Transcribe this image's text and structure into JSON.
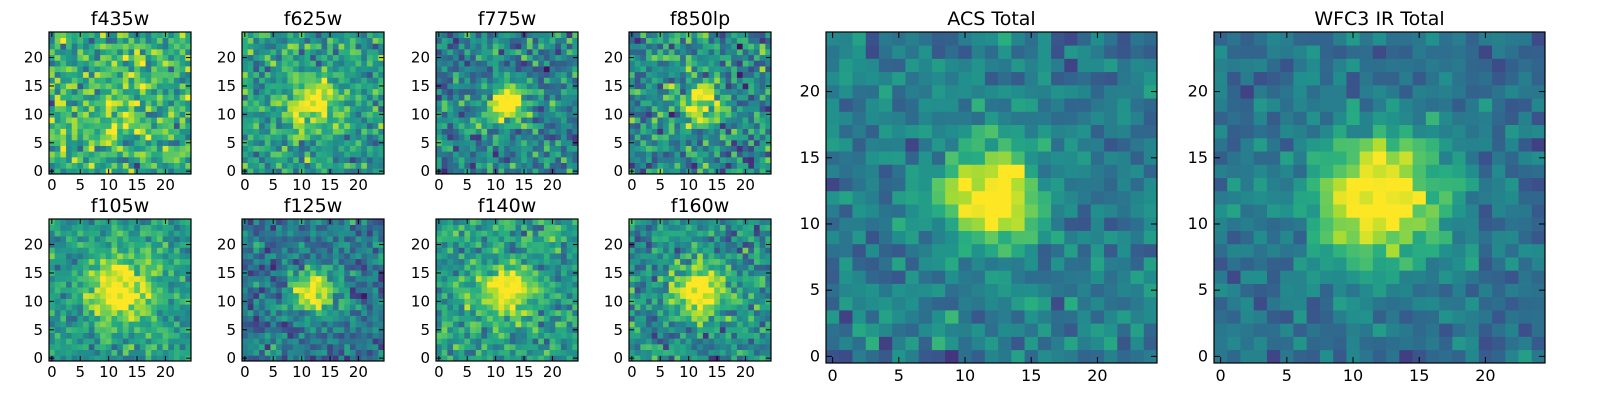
{
  "chart_data": [
    {
      "type": "heatmap",
      "title": "f435w",
      "peak": 0.15,
      "noise": 0.55,
      "base": 0.62,
      "sigma": 4.5,
      "seed": 11,
      "xticks": [
        0,
        5,
        10,
        15,
        20
      ],
      "yticks": [
        0,
        5,
        10,
        15,
        20
      ],
      "grid_size": 25
    },
    {
      "type": "heatmap",
      "title": "f625w",
      "peak": 0.45,
      "noise": 0.45,
      "base": 0.55,
      "sigma": 3.2,
      "seed": 23,
      "xticks": [
        0,
        5,
        10,
        15,
        20
      ],
      "yticks": [
        0,
        5,
        10,
        15,
        20
      ],
      "grid_size": 25
    },
    {
      "type": "heatmap",
      "title": "f775w",
      "peak": 0.75,
      "noise": 0.5,
      "base": 0.45,
      "sigma": 2.2,
      "seed": 37,
      "xticks": [
        0,
        5,
        10,
        15,
        20
      ],
      "yticks": [
        0,
        5,
        10,
        15,
        20
      ],
      "grid_size": 25
    },
    {
      "type": "heatmap",
      "title": "f850lp",
      "peak": 0.6,
      "noise": 0.55,
      "base": 0.48,
      "sigma": 2.2,
      "seed": 41,
      "xticks": [
        0,
        5,
        10,
        15,
        20
      ],
      "yticks": [
        0,
        5,
        10,
        15,
        20
      ],
      "grid_size": 25
    },
    {
      "type": "heatmap",
      "title": "f105w",
      "peak": 0.55,
      "noise": 0.35,
      "base": 0.55,
      "sigma": 3.8,
      "seed": 53,
      "xticks": [
        0,
        5,
        10,
        15,
        20
      ],
      "yticks": [
        0,
        5,
        10,
        15,
        20
      ],
      "grid_size": 25
    },
    {
      "type": "heatmap",
      "title": "f125w",
      "peak": 0.7,
      "noise": 0.4,
      "base": 0.4,
      "sigma": 2.6,
      "seed": 67,
      "xticks": [
        0,
        5,
        10,
        15,
        20
      ],
      "yticks": [
        0,
        5,
        10,
        15,
        20
      ],
      "grid_size": 25
    },
    {
      "type": "heatmap",
      "title": "f140w",
      "peak": 0.5,
      "noise": 0.4,
      "base": 0.55,
      "sigma": 3.2,
      "seed": 71,
      "xticks": [
        0,
        5,
        10,
        15,
        20
      ],
      "yticks": [
        0,
        5,
        10,
        15,
        20
      ],
      "grid_size": 25
    },
    {
      "type": "heatmap",
      "title": "f160w",
      "peak": 0.65,
      "noise": 0.45,
      "base": 0.5,
      "sigma": 3.0,
      "seed": 83,
      "xticks": [
        0,
        5,
        10,
        15,
        20
      ],
      "yticks": [
        0,
        5,
        10,
        15,
        20
      ],
      "grid_size": 25
    },
    {
      "type": "heatmap",
      "title": "ACS Total",
      "peak": 0.75,
      "noise": 0.3,
      "base": 0.42,
      "sigma": 2.4,
      "seed": 97,
      "xticks": [
        0,
        5,
        10,
        15,
        20
      ],
      "yticks": [
        0,
        5,
        10,
        15,
        20
      ],
      "grid_size": 25
    },
    {
      "type": "heatmap",
      "title": "WFC3 IR Total",
      "peak": 0.7,
      "noise": 0.25,
      "base": 0.38,
      "sigma": 3.6,
      "seed": 101,
      "xticks": [
        0,
        5,
        10,
        15,
        20
      ],
      "yticks": [
        0,
        5,
        10,
        15,
        20
      ],
      "grid_size": 25
    }
  ],
  "colormap": "viridis",
  "center": [
    12,
    12
  ]
}
